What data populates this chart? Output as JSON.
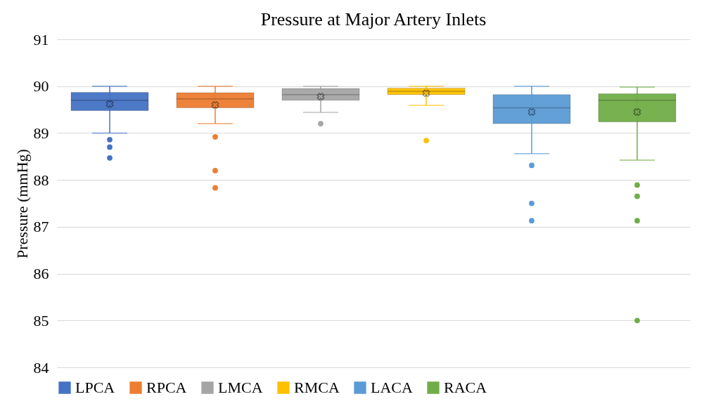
{
  "chart_data": {
    "type": "box",
    "title": "Pressure at Major Artery Inlets",
    "ylabel": "Pressure (mmHg)",
    "categories": [
      null
    ],
    "ylim": [
      84,
      91
    ],
    "yticks": [
      84,
      85,
      86,
      87,
      88,
      89,
      90,
      91
    ],
    "grid": "y",
    "legend": "bottom",
    "series": [
      {
        "name": "LPCA",
        "color": "#4472c4",
        "boxes": [
          {
            "low": 89.0,
            "q1": 89.48,
            "median": 89.7,
            "q3": 89.87,
            "high": 90.0,
            "mean": 89.62,
            "outliers": [
              88.86,
              88.7,
              88.47
            ]
          }
        ]
      },
      {
        "name": "RPCA",
        "color": "#ed7d31",
        "boxes": [
          {
            "low": 89.2,
            "q1": 89.54,
            "median": 89.73,
            "q3": 89.86,
            "high": 90.0,
            "mean": 89.6,
            "outliers": [
              88.92,
              88.2,
              87.83
            ]
          }
        ]
      },
      {
        "name": "LMCA",
        "color": "#a5a5a5",
        "boxes": [
          {
            "low": 89.44,
            "q1": 89.7,
            "median": 89.82,
            "q3": 89.95,
            "high": 90.0,
            "mean": 89.78,
            "outliers": [
              89.2
            ]
          }
        ]
      },
      {
        "name": "RMCA",
        "color": "#ffc000",
        "boxes": [
          {
            "low": 89.59,
            "q1": 89.82,
            "median": 89.89,
            "q3": 89.96,
            "high": 90.0,
            "mean": 89.85,
            "outliers": [
              88.84
            ]
          }
        ]
      },
      {
        "name": "LACA",
        "color": "#5b9bd5",
        "boxes": [
          {
            "low": 88.56,
            "q1": 89.2,
            "median": 89.54,
            "q3": 89.82,
            "high": 90.0,
            "mean": 89.45,
            "outliers": [
              88.31,
              87.5,
              87.13
            ]
          }
        ]
      },
      {
        "name": "RACA",
        "color": "#70ad47",
        "boxes": [
          {
            "low": 88.42,
            "q1": 89.24,
            "median": 89.7,
            "q3": 89.84,
            "high": 89.98,
            "mean": 89.45,
            "outliers": [
              87.89,
              87.65,
              87.13,
              85.0
            ]
          }
        ]
      }
    ]
  }
}
